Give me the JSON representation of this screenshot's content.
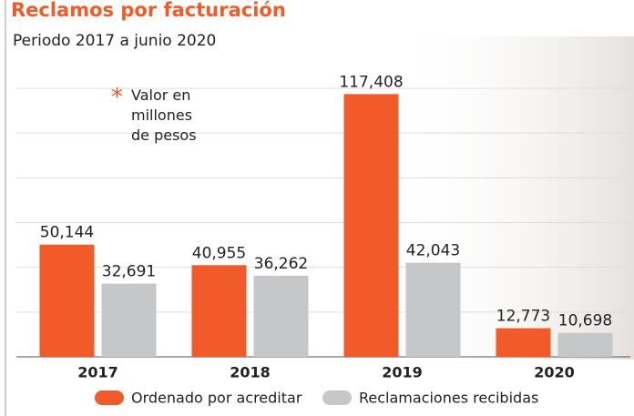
{
  "chart_data": {
    "type": "bar",
    "title": "Reclamos por facturación",
    "subtitle": "Periodo 2017 a junio 2020",
    "annotation_marker": "*",
    "annotation": "Valor en millones de pesos",
    "categories": [
      "2017",
      "2018",
      "2019",
      "2020"
    ],
    "series": [
      {
        "name": "Ordenado por acreditar",
        "color": "#f15a29",
        "values": [
          50144,
          40955,
          117408,
          12773
        ],
        "value_labels": [
          "50,144",
          "40,955",
          "117,408",
          "12,773"
        ]
      },
      {
        "name": "Reclamaciones recibidas",
        "color": "#c6c7c9",
        "values": [
          32691,
          36262,
          42043,
          10698
        ],
        "value_labels": [
          "32,691",
          "36,262",
          "42,043",
          "10,698"
        ]
      }
    ],
    "ylim": [
      0,
      120000
    ],
    "yticks": [
      0,
      20000,
      40000,
      60000,
      80000,
      100000,
      120000
    ],
    "grid": true
  }
}
